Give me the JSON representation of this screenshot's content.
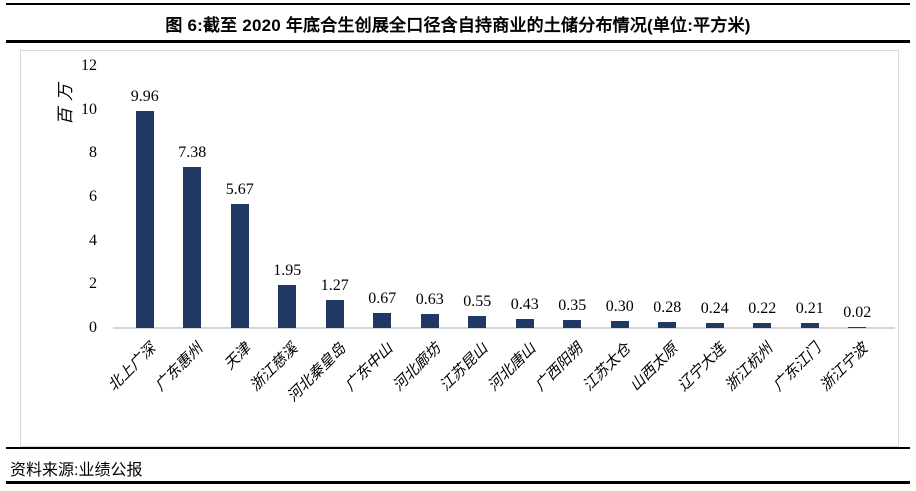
{
  "header": {
    "title": "图 6:截至 2020 年底合生创展全口径含自持商业的土储分布情况(单位:平方米)"
  },
  "chart_data": {
    "type": "bar",
    "title": "截至 2020 年底合生创展全口径含自持商业的土储分布情况",
    "unit": "平方米",
    "ylabel": "百万",
    "xlabel": "",
    "categories": [
      "北上广深",
      "广东惠州",
      "天津",
      "浙江慈溪",
      "河北秦皇岛",
      "广东中山",
      "河北廊坊",
      "江苏昆山",
      "河北唐山",
      "广西阳朔",
      "江苏太仓",
      "山西太原",
      "辽宁大连",
      "浙江杭州",
      "广东江门",
      "浙江宁波"
    ],
    "values": [
      9.96,
      7.38,
      5.67,
      1.95,
      1.27,
      0.67,
      0.63,
      0.55,
      0.43,
      0.35,
      0.3,
      0.28,
      0.24,
      0.22,
      0.21,
      0.02
    ],
    "data_labels": [
      "9.96",
      "7.38",
      "5.67",
      "1.95",
      "1.27",
      "0.67",
      "0.63",
      "0.55",
      "0.43",
      "0.35",
      "0.30",
      "0.28",
      "0.24",
      "0.22",
      "0.21",
      "0.02"
    ],
    "ylim": [
      0,
      12
    ],
    "yticks": [
      0,
      2,
      4,
      6,
      8,
      10,
      12
    ],
    "grid": false,
    "legend": null,
    "bar_color": "#1f3864",
    "axis_line_color": "#d6d6d6",
    "panel_border_color": "#d9d9d9"
  },
  "footer": {
    "source": "资料来源:业绩公报"
  }
}
